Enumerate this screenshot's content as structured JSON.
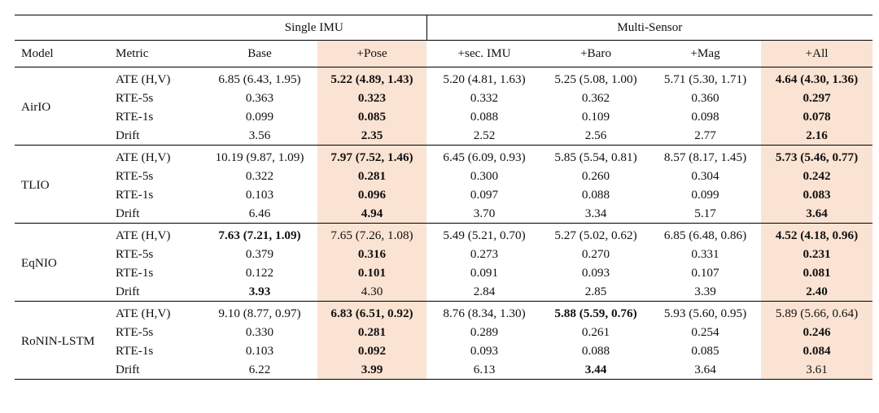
{
  "header": {
    "group_single": "Single IMU",
    "group_multi": "Multi-Sensor",
    "columns": [
      "Model",
      "Metric",
      "Base",
      "+Pose",
      "+sec. IMU",
      "+Baro",
      "+Mag",
      "+All"
    ]
  },
  "highlight_color": "#fbe3d3",
  "highlighted_columns": [
    "+Pose",
    "+All"
  ],
  "groups": [
    {
      "model": "AirIO",
      "rows": [
        {
          "metric": "ATE (H,V)",
          "cells": [
            {
              "v": "6.85 (6.43, 1.95)",
              "b": false
            },
            {
              "v": "5.22 (4.89, 1.43)",
              "b": true
            },
            {
              "v": "5.20 (4.81, 1.63)",
              "b": false
            },
            {
              "v": "5.25 (5.08, 1.00)",
              "b": false
            },
            {
              "v": "5.71 (5.30, 1.71)",
              "b": false
            },
            {
              "v": "4.64 (4.30, 1.36)",
              "b": true
            }
          ]
        },
        {
          "metric": "RTE-5s",
          "cells": [
            {
              "v": "0.363",
              "b": false
            },
            {
              "v": "0.323",
              "b": true
            },
            {
              "v": "0.332",
              "b": false
            },
            {
              "v": "0.362",
              "b": false
            },
            {
              "v": "0.360",
              "b": false
            },
            {
              "v": "0.297",
              "b": true
            }
          ]
        },
        {
          "metric": "RTE-1s",
          "cells": [
            {
              "v": "0.099",
              "b": false
            },
            {
              "v": "0.085",
              "b": true
            },
            {
              "v": "0.088",
              "b": false
            },
            {
              "v": "0.109",
              "b": false
            },
            {
              "v": "0.098",
              "b": false
            },
            {
              "v": "0.078",
              "b": true
            }
          ]
        },
        {
          "metric": "Drift",
          "cells": [
            {
              "v": "3.56",
              "b": false
            },
            {
              "v": "2.35",
              "b": true
            },
            {
              "v": "2.52",
              "b": false
            },
            {
              "v": "2.56",
              "b": false
            },
            {
              "v": "2.77",
              "b": false
            },
            {
              "v": "2.16",
              "b": true
            }
          ]
        }
      ]
    },
    {
      "model": "TLIO",
      "rows": [
        {
          "metric": "ATE (H,V)",
          "cells": [
            {
              "v": "10.19 (9.87, 1.09)",
              "b": false
            },
            {
              "v": "7.97 (7.52, 1.46)",
              "b": true
            },
            {
              "v": "6.45 (6.09, 0.93)",
              "b": false
            },
            {
              "v": "5.85 (5.54, 0.81)",
              "b": false
            },
            {
              "v": "8.57 (8.17, 1.45)",
              "b": false
            },
            {
              "v": "5.73 (5.46, 0.77)",
              "b": true
            }
          ]
        },
        {
          "metric": "RTE-5s",
          "cells": [
            {
              "v": "0.322",
              "b": false
            },
            {
              "v": "0.281",
              "b": true
            },
            {
              "v": "0.300",
              "b": false
            },
            {
              "v": "0.260",
              "b": false
            },
            {
              "v": "0.304",
              "b": false
            },
            {
              "v": "0.242",
              "b": true
            }
          ]
        },
        {
          "metric": "RTE-1s",
          "cells": [
            {
              "v": "0.103",
              "b": false
            },
            {
              "v": "0.096",
              "b": true
            },
            {
              "v": "0.097",
              "b": false
            },
            {
              "v": "0.088",
              "b": false
            },
            {
              "v": "0.099",
              "b": false
            },
            {
              "v": "0.083",
              "b": true
            }
          ]
        },
        {
          "metric": "Drift",
          "cells": [
            {
              "v": "6.46",
              "b": false
            },
            {
              "v": "4.94",
              "b": true
            },
            {
              "v": "3.70",
              "b": false
            },
            {
              "v": "3.34",
              "b": false
            },
            {
              "v": "5.17",
              "b": false
            },
            {
              "v": "3.64",
              "b": true
            }
          ]
        }
      ]
    },
    {
      "model": "EqNIO",
      "rows": [
        {
          "metric": "ATE (H,V)",
          "cells": [
            {
              "v": "7.63 (7.21, 1.09)",
              "b": true
            },
            {
              "v": "7.65 (7.26, 1.08)",
              "b": false
            },
            {
              "v": "5.49 (5.21, 0.70)",
              "b": false
            },
            {
              "v": "5.27 (5.02, 0.62)",
              "b": false
            },
            {
              "v": "6.85 (6.48, 0.86)",
              "b": false
            },
            {
              "v": "4.52 (4.18, 0.96)",
              "b": true
            }
          ]
        },
        {
          "metric": "RTE-5s",
          "cells": [
            {
              "v": "0.379",
              "b": false
            },
            {
              "v": "0.316",
              "b": true
            },
            {
              "v": "0.273",
              "b": false
            },
            {
              "v": "0.270",
              "b": false
            },
            {
              "v": "0.331",
              "b": false
            },
            {
              "v": "0.231",
              "b": true
            }
          ]
        },
        {
          "metric": "RTE-1s",
          "cells": [
            {
              "v": "0.122",
              "b": false
            },
            {
              "v": "0.101",
              "b": true
            },
            {
              "v": "0.091",
              "b": false
            },
            {
              "v": "0.093",
              "b": false
            },
            {
              "v": "0.107",
              "b": false
            },
            {
              "v": "0.081",
              "b": true
            }
          ]
        },
        {
          "metric": "Drift",
          "cells": [
            {
              "v": "3.93",
              "b": true
            },
            {
              "v": "4.30",
              "b": false
            },
            {
              "v": "2.84",
              "b": false
            },
            {
              "v": "2.85",
              "b": false
            },
            {
              "v": "3.39",
              "b": false
            },
            {
              "v": "2.40",
              "b": true
            }
          ]
        }
      ]
    },
    {
      "model": "RoNIN-LSTM",
      "rows": [
        {
          "metric": "ATE (H,V)",
          "cells": [
            {
              "v": "9.10 (8.77, 0.97)",
              "b": false
            },
            {
              "v": "6.83 (6.51, 0.92)",
              "b": true
            },
            {
              "v": "8.76 (8.34, 1.30)",
              "b": false
            },
            {
              "v": "5.88 (5.59, 0.76)",
              "b": true
            },
            {
              "v": "5.93 (5.60, 0.95)",
              "b": false
            },
            {
              "v": "5.89 (5.66, 0.64)",
              "b": false
            }
          ]
        },
        {
          "metric": "RTE-5s",
          "cells": [
            {
              "v": "0.330",
              "b": false
            },
            {
              "v": "0.281",
              "b": true
            },
            {
              "v": "0.289",
              "b": false
            },
            {
              "v": "0.261",
              "b": false
            },
            {
              "v": "0.254",
              "b": false
            },
            {
              "v": "0.246",
              "b": true
            }
          ]
        },
        {
          "metric": "RTE-1s",
          "cells": [
            {
              "v": "0.103",
              "b": false
            },
            {
              "v": "0.092",
              "b": true
            },
            {
              "v": "0.093",
              "b": false
            },
            {
              "v": "0.088",
              "b": false
            },
            {
              "v": "0.085",
              "b": false
            },
            {
              "v": "0.084",
              "b": true
            }
          ]
        },
        {
          "metric": "Drift",
          "cells": [
            {
              "v": "6.22",
              "b": false
            },
            {
              "v": "3.99",
              "b": true
            },
            {
              "v": "6.13",
              "b": false
            },
            {
              "v": "3.44",
              "b": true
            },
            {
              "v": "3.64",
              "b": false
            },
            {
              "v": "3.61",
              "b": false
            }
          ]
        }
      ]
    }
  ]
}
